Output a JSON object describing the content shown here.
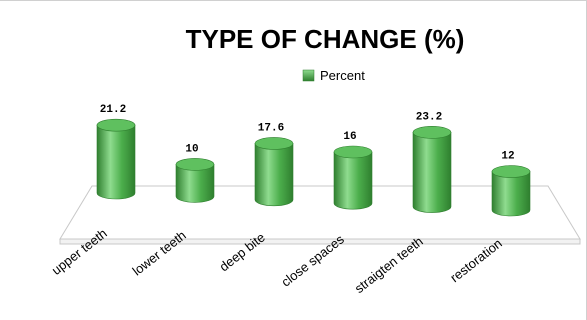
{
  "chart_data": {
    "type": "bar",
    "title": "TYPE OF CHANGE (%)",
    "legend": {
      "position": "top",
      "entries": [
        "Percent"
      ]
    },
    "categories": [
      "upper teeth",
      "lower teeth",
      "deep bite",
      "close spaces",
      "straigten teeth",
      "restoration"
    ],
    "series": [
      {
        "name": "Percent",
        "values": [
          21.2,
          10,
          17.6,
          16,
          23.2,
          12
        ]
      }
    ],
    "value_labels": [
      "21.2",
      "10",
      "17.6",
      "16",
      "23.2",
      "12"
    ],
    "style": "3d-cylinder",
    "grid": false
  },
  "colors": {
    "bar": "#4cae4c",
    "bar_light": "#8fdc8f",
    "bar_dark": "#2f7f2f",
    "floor": "#ffffff",
    "floor_edge": "#c8c8c8",
    "text": "#000000"
  }
}
